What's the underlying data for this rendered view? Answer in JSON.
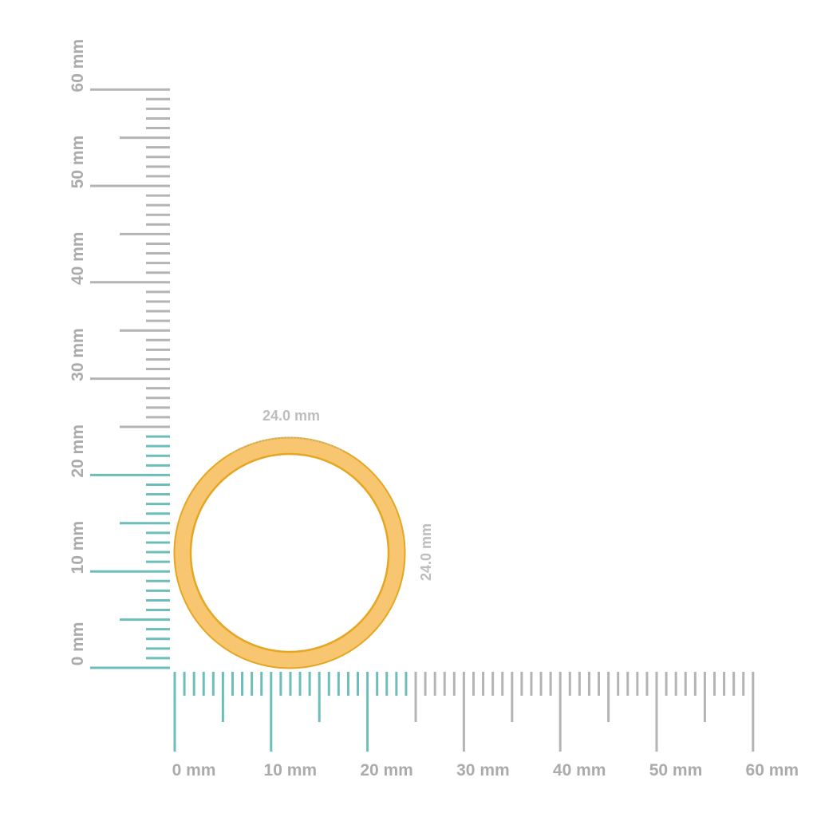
{
  "rulers": {
    "unit": "mm",
    "max_mm": 60,
    "highlight_mm": 24,
    "highlight_color": "#6dbdba",
    "base_color": "#b4b4b4",
    "horizontal_labels": [
      "0 mm",
      "10 mm",
      "20 mm",
      "30 mm",
      "40 mm",
      "50 mm",
      "60 mm"
    ],
    "vertical_labels": [
      "0 mm",
      "10 mm",
      "20 mm",
      "30 mm",
      "40 mm",
      "50 mm",
      "60 mm"
    ]
  },
  "ring": {
    "color": "#f8c670",
    "edge_color": "#e5a621",
    "width_label": "24.0 mm",
    "height_label": "24.0 mm"
  }
}
